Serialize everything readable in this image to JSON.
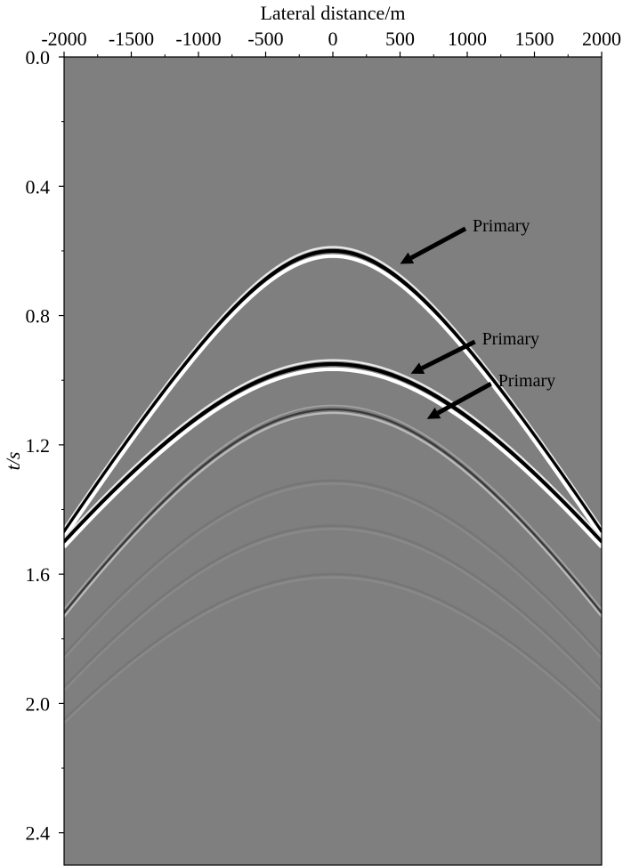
{
  "chart_data": {
    "type": "image",
    "xlabel": "Lateral distance/m",
    "ylabel": "t/s",
    "xlim": [
      -2000,
      2000
    ],
    "ylim": [
      0.0,
      2.5
    ],
    "y_inverted": true,
    "x_axis_position": "top",
    "x_ticks": [
      -2000,
      -1500,
      -1000,
      -500,
      0,
      500,
      1000,
      1500,
      2000
    ],
    "x_tick_labels": [
      "-2000",
      "-1500",
      "-1000",
      "-500",
      "0",
      "500",
      "1000",
      "1500",
      "2000"
    ],
    "y_ticks": [
      0.0,
      0.4,
      0.8,
      1.2,
      1.6,
      2.0,
      2.4
    ],
    "y_tick_labels": [
      "0.0",
      "0.4",
      "0.8",
      "1.2",
      "1.6",
      "2.0",
      "2.4"
    ],
    "y_minor_step": 0.2,
    "colormap": "gray",
    "background_color": "#7f7f7f",
    "events": [
      {
        "label": "Primary",
        "apex_t": 0.6,
        "edge_t": 1.47,
        "strength": "strong"
      },
      {
        "label": "Primary",
        "apex_t": 0.95,
        "edge_t": 1.5,
        "strength": "strong"
      },
      {
        "label": "Primary",
        "apex_t": 1.09,
        "edge_t": 1.72,
        "strength": "weak"
      }
    ],
    "faint_events": [
      {
        "apex_t": 1.31,
        "edge_t": 1.85
      },
      {
        "apex_t": 1.45,
        "edge_t": 1.95
      },
      {
        "apex_t": 1.6,
        "edge_t": 2.05
      }
    ],
    "annotations": [
      {
        "text": "Primary",
        "x": 1000,
        "t": 0.52,
        "arrow_to_x": 500,
        "arrow_to_t": 0.64
      },
      {
        "text": "Primary",
        "x": 1070,
        "t": 0.87,
        "arrow_to_x": 580,
        "arrow_to_t": 0.98
      },
      {
        "text": "Primary",
        "x": 1190,
        "t": 1.0,
        "arrow_to_x": 700,
        "arrow_to_t": 1.12
      }
    ]
  }
}
